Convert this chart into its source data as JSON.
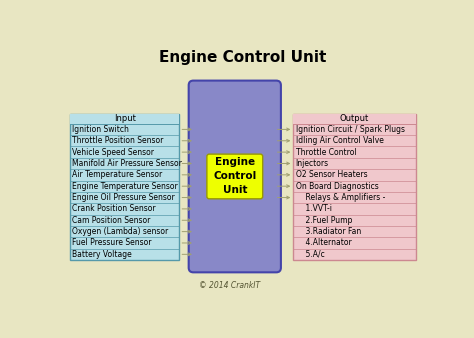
{
  "title": "Engine Control Unit",
  "background_color": "#e8e6c2",
  "input_header": "Input",
  "input_items": [
    "Ignition Switch",
    "Throttle Position Sensor",
    "Vehicle Speed Sensor",
    "Manifold Air Pressure Sensor",
    "Air Temperature Sensor",
    "Engine Temperature Sensor",
    "Engine Oil Pressure Sensor",
    "Crank Position Sensor",
    "Cam Position Sensor",
    "Oxygen (Lambda) sensor",
    "Fuel Pressure Sensor",
    "Battery Voltage"
  ],
  "output_header": "Output",
  "output_items": [
    "Ignition Circuit / Spark Plugs",
    "Idling Air Control Valve",
    "Throttle Control",
    "Injectors",
    "O2 Sensor Heaters",
    "On Board Diagnostics",
    "    Relays & Amplifiers -",
    "    1.VVT-i",
    "    2.Fuel Pump",
    "    3.Radiator Fan",
    "    4.Alternator",
    "    5.A/c"
  ],
  "ecu_label": "Engine\nControl\nUnit",
  "input_box_color": "#b8e0e8",
  "input_border_color": "#5599aa",
  "output_box_color": "#f0c8cc",
  "output_border_color": "#cc8890",
  "ecu_box_color": "#8888c8",
  "ecu_border_color": "#4444aa",
  "ecu_label_bg": "#eeff00",
  "ecu_label_border": "#999900",
  "arrow_color": "#a0a070",
  "line_color": "#b0b080",
  "copyright": "© 2014 CrankIT",
  "title_fontsize": 11,
  "item_fontsize": 5.5,
  "header_fontsize": 6,
  "ecu_fontsize": 7.5
}
